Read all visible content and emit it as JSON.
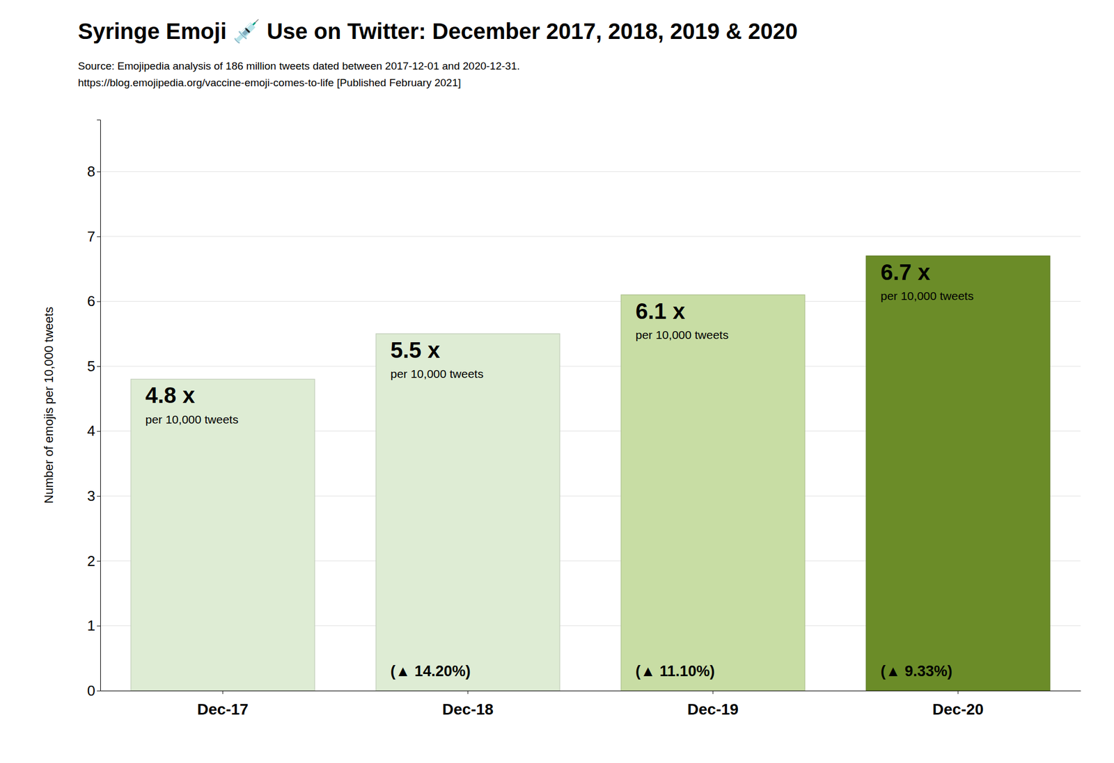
{
  "chart_data": {
    "type": "bar",
    "title": "Syringe Emoji 💉  Use on Twitter: December 2017, 2018, 2019 & 2020",
    "y_label": "Number of emojis per 10,000 tweets",
    "categories": [
      "Dec-17",
      "Dec-18",
      "Dec-19",
      "Dec-20"
    ],
    "values": [
      4.8,
      5.5,
      6.1,
      6.7
    ],
    "value_labels": [
      "4.8 x",
      "5.5 x",
      "6.1 x",
      "6.7 x"
    ],
    "data_labels": true,
    "colors": [
      "#deecd4",
      "#deecd4",
      "#c8dda4",
      "#6b8c28"
    ],
    "ylim": [
      0,
      8.8
    ],
    "yticks": [
      0,
      1,
      2,
      3,
      4,
      5,
      6,
      7,
      8
    ],
    "grid": true,
    "annotations": [
      {
        "text": "Source: Emojipedia analysis of 186 million tweets dated between 2017-12-01 and 2020-12-31."
      },
      {
        "text": "https://blog.emojipedia.org/vaccine-emoji-comes-to-life [Published February 2021]"
      },
      {
        "text": "per 10,000 tweets",
        "categories": [
          "Dec-17",
          "Dec-18",
          "Dec-19",
          "Dec-20"
        ]
      },
      {
        "text": "(▲ 14.20%)",
        "category": "Dec-18"
      },
      {
        "text": "(▲ 11.10%)",
        "category": "Dec-19"
      },
      {
        "text": "(▲ 9.33%)",
        "category": "Dec-20"
      }
    ]
  }
}
